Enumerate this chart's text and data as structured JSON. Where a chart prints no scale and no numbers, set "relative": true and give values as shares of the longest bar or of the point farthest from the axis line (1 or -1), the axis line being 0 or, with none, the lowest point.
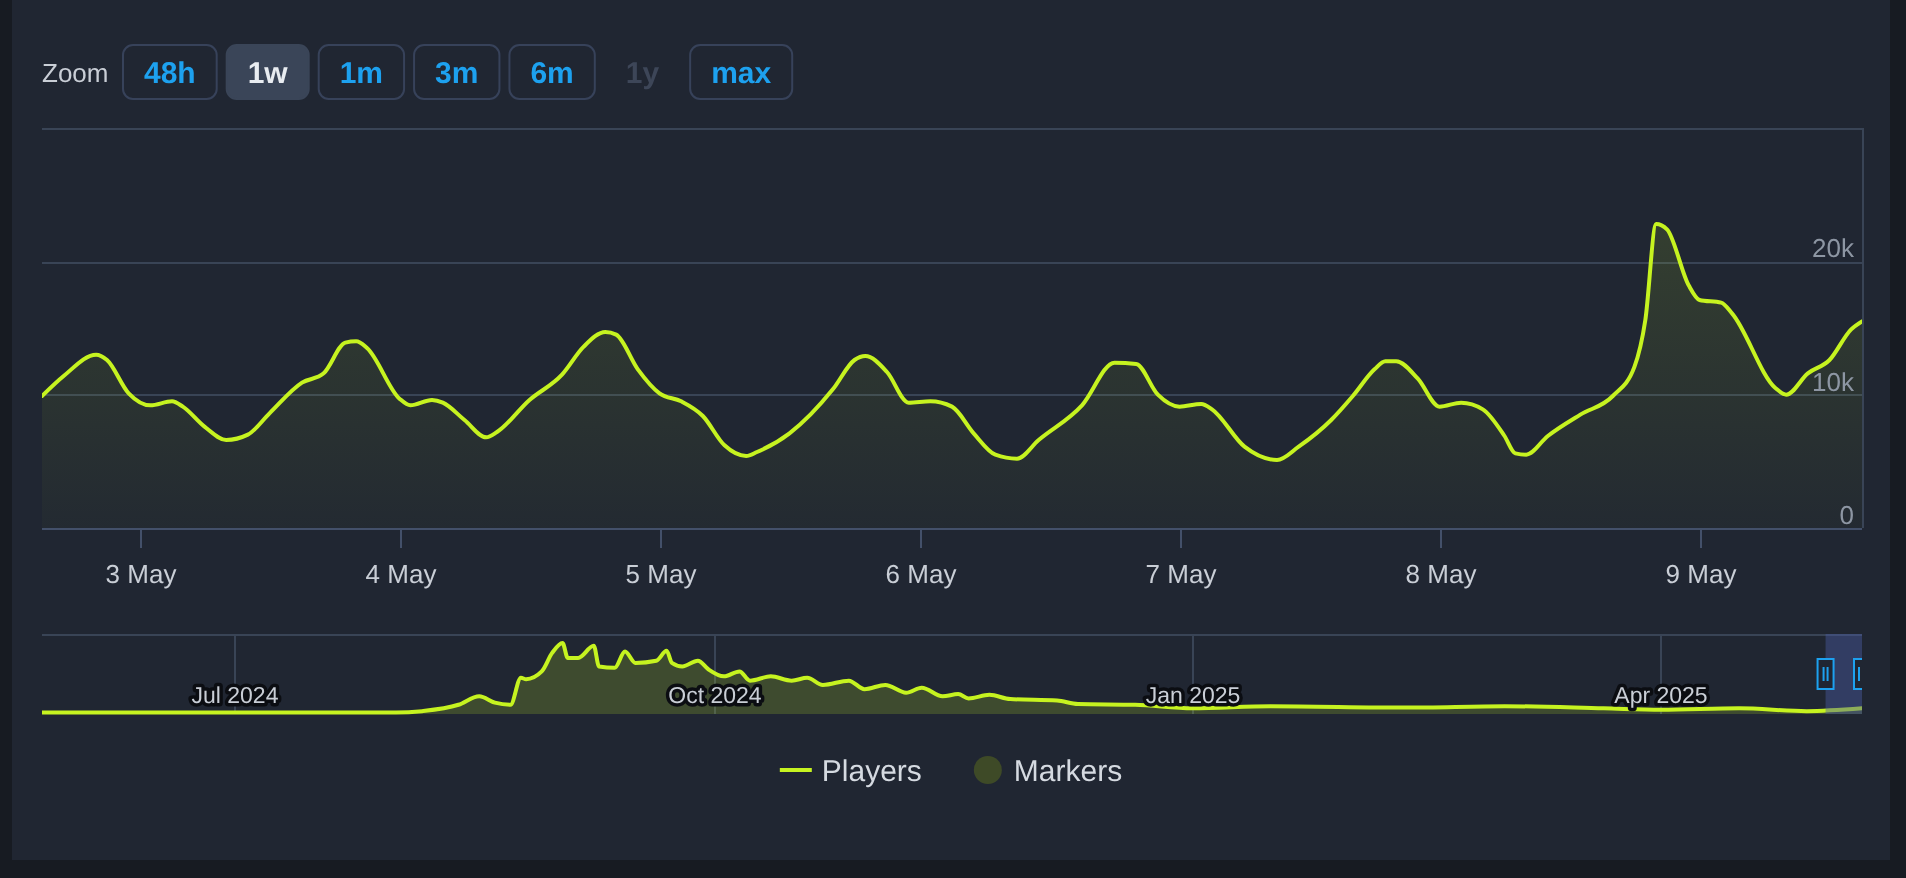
{
  "chart_data": [
    {
      "type": "area",
      "annotations": [
        "Zoom",
        "48h",
        "1w",
        "1m",
        "3m",
        "6m",
        "1y",
        "max"
      ],
      "x": [
        "2025-05-02T15:00",
        "2025-05-02T17:00",
        "2025-05-02T20:00",
        "2025-05-02T21:00",
        "2025-05-02T23:00",
        "2025-05-03T01:00",
        "2025-05-03T03:00",
        "2025-05-03T04:00",
        "2025-05-03T06:00",
        "2025-05-03T08:00",
        "2025-05-03T10:00",
        "2025-05-03T12:00",
        "2025-05-03T15:00",
        "2025-05-03T17:00",
        "2025-05-03T19:00",
        "2025-05-03T20:00",
        "2025-05-03T21:00",
        "2025-05-04T00:00",
        "2025-05-04T01:00",
        "2025-05-04T03:00",
        "2025-05-04T04:00",
        "2025-05-04T06:00",
        "2025-05-04T08:00",
        "2025-05-04T09:00",
        "2025-05-04T12:00",
        "2025-05-04T15:00",
        "2025-05-04T17:00",
        "2025-05-04T19:00",
        "2025-05-04T20:00",
        "2025-05-04T22:00",
        "2025-05-05T00:00",
        "2025-05-05T02:00",
        "2025-05-05T04:00",
        "2025-05-05T06:00",
        "2025-05-05T08:00",
        "2025-05-05T09:00",
        "2025-05-05T12:00",
        "2025-05-05T16:00",
        "2025-05-05T18:00",
        "2025-05-05T19:00",
        "2025-05-05T21:00",
        "2025-05-05T23:00",
        "2025-05-06T01:00",
        "2025-05-06T03:00",
        "2025-05-06T05:00",
        "2025-05-06T07:00",
        "2025-05-06T09:00",
        "2025-05-06T11:00",
        "2025-05-06T15:00",
        "2025-05-06T18:00",
        "2025-05-06T20:00",
        "2025-05-06T22:00",
        "2025-05-07T00:00",
        "2025-05-07T02:00",
        "2025-05-07T03:00",
        "2025-05-07T06:00",
        "2025-05-07T09:00",
        "2025-05-07T11:00",
        "2025-05-07T14:00",
        "2025-05-07T16:00",
        "2025-05-07T18:00",
        "2025-05-07T19:00",
        "2025-05-07T20:00",
        "2025-05-07T22:00",
        "2025-05-08T00:00",
        "2025-05-08T02:00",
        "2025-05-08T04:00",
        "2025-05-08T06:00",
        "2025-05-08T07:00",
        "2025-05-08T08:00",
        "2025-05-08T10:00",
        "2025-05-08T13:00",
        "2025-05-08T16:00",
        "2025-05-08T18:00",
        "2025-05-08T19:00",
        "2025-05-08T20:00",
        "2025-05-08T21:00",
        "2025-05-08T23:00",
        "2025-05-09T00:00",
        "2025-05-09T02:00",
        "2025-05-09T03:00",
        "2025-05-09T07:00",
        "2025-05-09T08:00",
        "2025-05-09T10:00",
        "2025-05-09T12:00",
        "2025-05-09T14:00",
        "2025-05-09T15:00"
      ],
      "series": [
        {
          "name": "Players",
          "color": "#c6f320",
          "values": [
            9900,
            11400,
            13000,
            12600,
            10100,
            9200,
            9500,
            9100,
            7600,
            6600,
            7000,
            8600,
            10900,
            11600,
            13900,
            14000,
            13500,
            9700,
            9200,
            9600,
            9400,
            8100,
            6800,
            7200,
            9600,
            11500,
            13600,
            14700,
            14500,
            11900,
            10100,
            9500,
            8400,
            6200,
            5400,
            5700,
            7100,
            10400,
            12600,
            12900,
            11700,
            9400,
            9500,
            9100,
            7100,
            5500,
            5200,
            6600,
            9200,
            12400,
            12300,
            10000,
            9100,
            9300,
            8900,
            6100,
            5100,
            6100,
            8100,
            9900,
            11900,
            12500,
            12500,
            11200,
            9100,
            9400,
            8900,
            6900,
            5600,
            5500,
            6900,
            8500,
            9900,
            12100,
            15600,
            22800,
            22400,
            18200,
            17100,
            16900,
            16100,
            10500,
            10000,
            11600,
            12600,
            14900,
            15500
          ]
        },
        {
          "name": "Markers",
          "type": "scatter",
          "color": "#3e4a27",
          "values": [
            null,
            null,
            null,
            null,
            null,
            null,
            null,
            null,
            null,
            null,
            null,
            null,
            null,
            null,
            null,
            null,
            null,
            null,
            null,
            null,
            null,
            null,
            null,
            null,
            null,
            null,
            null,
            null,
            null,
            null,
            null,
            null,
            null,
            null,
            null,
            null,
            null,
            null,
            null,
            null,
            null,
            null,
            null,
            null,
            null,
            null,
            null,
            null,
            null,
            null,
            null,
            null,
            null,
            null,
            null,
            null,
            null,
            null,
            null,
            null,
            null,
            null,
            null,
            null,
            null,
            null,
            null,
            null,
            null,
            null,
            null,
            null,
            null,
            null,
            null,
            null,
            null,
            null,
            null,
            null,
            null,
            null,
            null,
            null,
            null,
            null,
            null
          ]
        }
      ],
      "xlim": [
        "2025-05-02T15:00",
        "2025-05-09T15:00"
      ],
      "xticks": [
        {
          "value": "2025-05-03",
          "label": "3 May"
        },
        {
          "value": "2025-05-04",
          "label": "4 May"
        },
        {
          "value": "2025-05-05",
          "label": "5 May"
        },
        {
          "value": "2025-05-06",
          "label": "6 May"
        },
        {
          "value": "2025-05-07",
          "label": "7 May"
        },
        {
          "value": "2025-05-08",
          "label": "8 May"
        },
        {
          "value": "2025-05-09",
          "label": "9 May"
        }
      ],
      "ylim": [
        0,
        30000
      ],
      "yticks": [
        {
          "value": 0,
          "label": "0"
        },
        {
          "value": 10000,
          "label": "10k"
        },
        {
          "value": 20000,
          "label": "20k"
        },
        {
          "value": 30000,
          "label": null
        }
      ],
      "grid": "y",
      "legend": "bottom"
    },
    {
      "type": "area",
      "relative": true,
      "color": "#c6f320",
      "x": [
        "2024-05-25",
        "2024-07-01",
        "2024-08-01",
        "2024-08-06",
        "2024-08-13",
        "2024-08-17",
        "2024-08-20",
        "2024-08-23",
        "2024-08-25",
        "2024-08-26",
        "2024-08-29",
        "2024-08-31",
        "2024-09-02",
        "2024-09-03",
        "2024-09-05",
        "2024-09-08",
        "2024-09-09",
        "2024-09-12",
        "2024-09-14",
        "2024-09-16",
        "2024-09-20",
        "2024-09-22",
        "2024-09-23",
        "2024-09-25",
        "2024-09-28",
        "2024-09-30",
        "2024-10-03",
        "2024-10-06",
        "2024-10-08",
        "2024-10-12",
        "2024-10-16",
        "2024-10-19",
        "2024-10-22",
        "2024-10-27",
        "2024-10-30",
        "2024-11-03",
        "2024-11-07",
        "2024-11-10",
        "2024-11-14",
        "2024-11-17",
        "2024-11-19",
        "2024-11-23",
        "2024-11-27",
        "2024-12-06",
        "2024-12-10",
        "2024-12-21",
        "2025-01-01",
        "2025-01-16",
        "2025-02-11",
        "2025-03-02",
        "2025-03-21",
        "2025-04-01",
        "2025-04-16",
        "2025-04-29",
        "2025-05-09T15:00"
      ],
      "values": [
        0.02,
        0.02,
        0.02,
        0.04,
        0.13,
        0.25,
        0.16,
        0.13,
        0.51,
        0.49,
        0.6,
        0.86,
        1,
        0.79,
        0.79,
        0.96,
        0.67,
        0.65,
        0.88,
        0.72,
        0.75,
        0.89,
        0.72,
        0.67,
        0.75,
        0.63,
        0.53,
        0.6,
        0.47,
        0.53,
        0.47,
        0.51,
        0.41,
        0.47,
        0.35,
        0.41,
        0.3,
        0.37,
        0.25,
        0.28,
        0.22,
        0.27,
        0.21,
        0.19,
        0.14,
        0.13,
        0.08,
        0.11,
        0.09,
        0.11,
        0.08,
        0.06,
        0.08,
        0.04,
        0.08
      ],
      "xlim": [
        "2024-05-25",
        "2025-05-09T15:00"
      ],
      "xticks": [
        {
          "value": "2024-07-01",
          "label": "Jul 2024"
        },
        {
          "value": "2024-10-01",
          "label": "Oct 2024"
        },
        {
          "value": "2025-01-01",
          "label": "Jan 2025"
        },
        {
          "value": "2025-04-01",
          "label": "Apr 2025"
        }
      ],
      "grid": "x"
    }
  ]
}
